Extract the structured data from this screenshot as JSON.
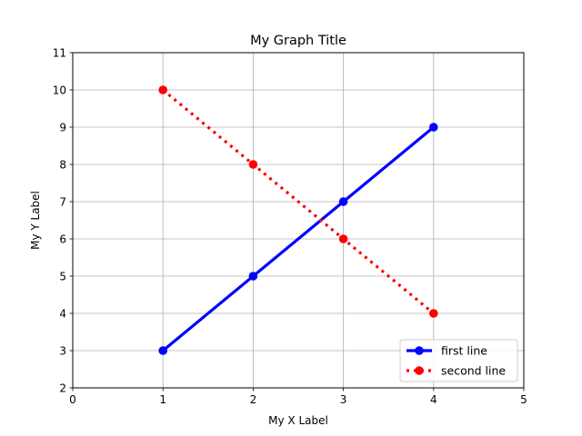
{
  "chart_data": {
    "type": "line",
    "title": "My Graph Title",
    "xlabel": "My X Label",
    "ylabel": "My Y Label",
    "xlim": [
      0,
      5
    ],
    "ylim": [
      2,
      11
    ],
    "xticks": [
      0,
      1,
      2,
      3,
      4,
      5
    ],
    "yticks": [
      2,
      3,
      4,
      5,
      6,
      7,
      8,
      9,
      10,
      11
    ],
    "grid": true,
    "legend_position": "lower-right",
    "series": [
      {
        "name": "first line",
        "x": [
          1,
          2,
          3,
          4
        ],
        "y": [
          3,
          5,
          7,
          9
        ],
        "color": "#0000ff",
        "linestyle": "solid",
        "marker": "circle"
      },
      {
        "name": "second line",
        "x": [
          1,
          2,
          3,
          4
        ],
        "y": [
          10,
          8,
          6,
          4
        ],
        "color": "#ff0000",
        "linestyle": "dotted",
        "marker": "circle"
      }
    ]
  }
}
